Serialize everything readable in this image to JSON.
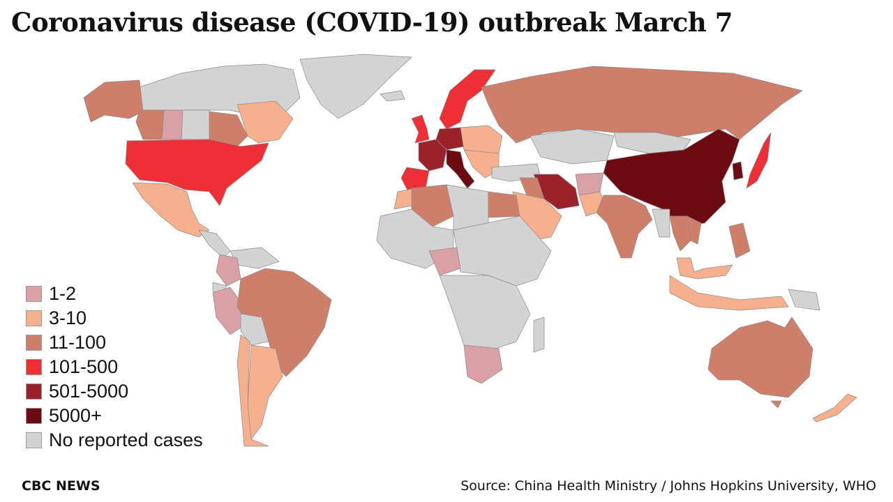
{
  "title": "Coronavirus disease (COVID-19) outbreak March 7",
  "legend": [
    {
      "label": "1-2",
      "color": "#d9a0a6"
    },
    {
      "label": "3-10",
      "color": "#f7b08e"
    },
    {
      "label": "11-100",
      "color": "#cf7f69"
    },
    {
      "label": "101-500",
      "color": "#ee2f35"
    },
    {
      "label": "501-5000",
      "color": "#9b222a"
    },
    {
      "label": "5000+",
      "color": "#6c0b12"
    },
    {
      "label": "No reported cases",
      "color": "#d3d3d3"
    }
  ],
  "footer": {
    "brand": "CBC NEWS",
    "source": "Source: China Health Ministry / Johns Hopkins University, WHO"
  }
}
